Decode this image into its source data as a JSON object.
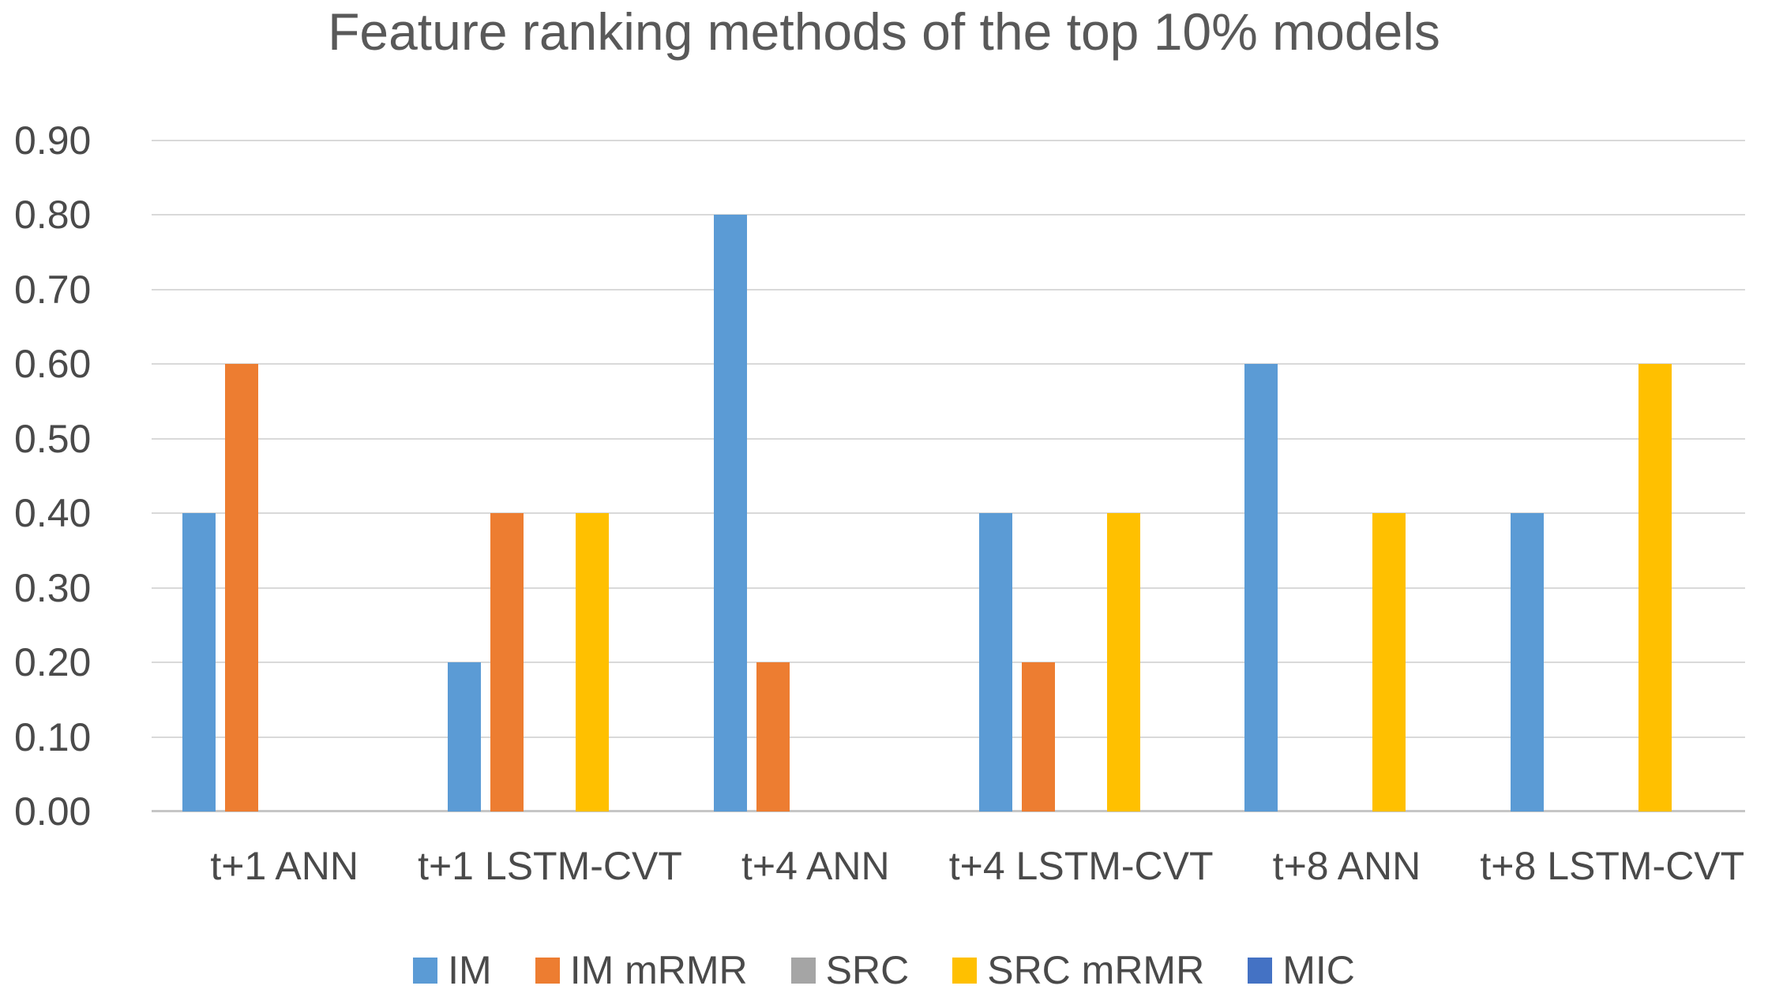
{
  "title": "Feature ranking methods of the top 10% models",
  "chart_data": {
    "type": "bar",
    "title": "Feature ranking methods of the top 10% models",
    "categories": [
      "t+1 ANN",
      "t+1 LSTM-CVT",
      "t+4 ANN",
      "t+4 LSTM-CVT",
      "t+8 ANN",
      "t+8 LSTM-CVT"
    ],
    "series": [
      {
        "name": "IM",
        "color": "#5B9BD5",
        "values": [
          0.4,
          0.2,
          0.8,
          0.4,
          0.6,
          0.4
        ]
      },
      {
        "name": "IM mRMR",
        "color": "#ED7D31",
        "values": [
          0.6,
          0.4,
          0.2,
          0.2,
          0.0,
          0.0
        ]
      },
      {
        "name": "SRC",
        "color": "#A5A5A5",
        "values": [
          0.0,
          0.0,
          0.0,
          0.0,
          0.0,
          0.0
        ]
      },
      {
        "name": "SRC mRMR",
        "color": "#FFC000",
        "values": [
          0.0,
          0.4,
          0.0,
          0.4,
          0.4,
          0.6
        ]
      },
      {
        "name": "MIC",
        "color": "#4472C4",
        "values": [
          0.0,
          0.0,
          0.0,
          0.0,
          0.0,
          0.0
        ]
      }
    ],
    "y_ticks": [
      "0.00",
      "0.10",
      "0.20",
      "0.30",
      "0.40",
      "0.50",
      "0.60",
      "0.70",
      "0.80",
      "0.90"
    ],
    "ylim": [
      0,
      0.9
    ],
    "xlabel": "",
    "ylabel": "",
    "grid": true,
    "legend_position": "bottom"
  },
  "colors": {
    "gridline": "#D9D9D9",
    "axis_line": "#C6C6C6",
    "title_text": "#595959",
    "label_text": "#4A4A4A",
    "background": "#FFFFFF"
  }
}
